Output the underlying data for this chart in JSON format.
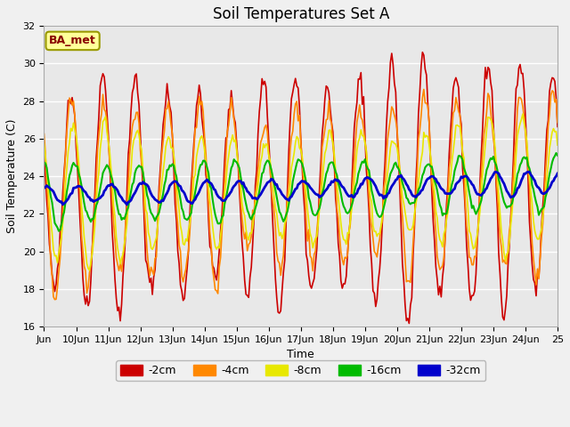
{
  "title": "Soil Temperatures Set A",
  "xlabel": "Time",
  "ylabel": "Soil Temperature (C)",
  "ylim": [
    16,
    32
  ],
  "xlim_days": [
    9,
    25
  ],
  "xtick_labels": [
    "Jun",
    "10Jun",
    "11Jun",
    "12Jun",
    "13Jun",
    "14Jun",
    "15Jun",
    "16Jun",
    "17Jun",
    "18Jun",
    "19Jun",
    "20Jun",
    "21Jun",
    "22Jun",
    "23Jun",
    "24Jun",
    "25"
  ],
  "xtick_positions": [
    9,
    10,
    11,
    12,
    13,
    14,
    15,
    16,
    17,
    18,
    19,
    20,
    21,
    22,
    23,
    24,
    25
  ],
  "legend_label": "BA_met",
  "series_labels": [
    "-2cm",
    "-4cm",
    "-8cm",
    "-16cm",
    "-32cm"
  ],
  "series_colors": [
    "#cc0000",
    "#ff8800",
    "#e8e800",
    "#00bb00",
    "#0000cc"
  ],
  "series_linewidths": [
    1.2,
    1.2,
    1.2,
    1.5,
    2.0
  ],
  "bg_color": "#e8e8e8",
  "fig_bg_color": "#f0f0f0",
  "grid_color": "#ffffff",
  "title_fontsize": 12,
  "label_fontsize": 9,
  "tick_fontsize": 8,
  "legend_fontsize": 9,
  "yticks": [
    16,
    18,
    20,
    22,
    24,
    26,
    28,
    30,
    32
  ]
}
